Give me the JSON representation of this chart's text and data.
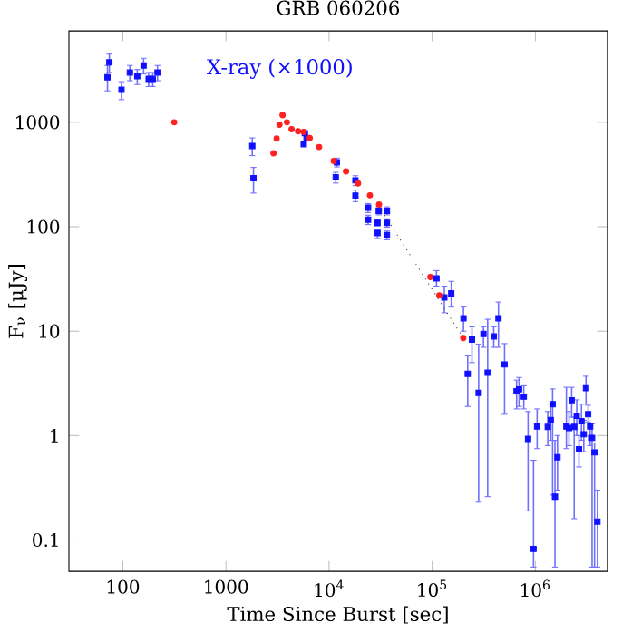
{
  "chart_data": {
    "type": "scatter",
    "title": "GRB 060206",
    "xlabel": "Time Since Burst [sec]",
    "ylabel": "F$_{ν}$ [μJy]",
    "log": "xy",
    "xlim": [
      30,
      5000000
    ],
    "ylim": [
      0.05,
      7500
    ],
    "xticks": [
      100,
      1000,
      {
        "value": 10000,
        "label": "10$^{4}$"
      },
      {
        "value": 100000,
        "label": "10$^{5}$"
      },
      {
        "value": 1000000,
        "label": "10$^{6}$"
      }
    ],
    "yticks": [
      0.1,
      1,
      10,
      100,
      1000
    ],
    "grid": false,
    "series": [
      {
        "name": "X-ray (×1000)",
        "type": "scatter",
        "color": "#1010ff",
        "marker": "square",
        "x": [
          71,
          74,
          97,
          117,
          138,
          159,
          178,
          195,
          217,
          1800,
          1850,
          5680,
          5820,
          6050,
          11900,
          11600,
          18000,
          18000,
          23900,
          23900,
          30300,
          29500,
          29500,
          36400,
          36400,
          36400,
          110000,
          131000,
          153000,
          201000,
          243000,
          221000,
          282000,
          314000,
          345000,
          395000,
          439000,
          503000,
          658000,
          695000,
          773000,
          850000,
          960000,
          1040000,
          1320000,
          1410000,
          1470000,
          1550000,
          1640000,
          2000000,
          2120000,
          2250000,
          2380000,
          2520000,
          2650000,
          2800000,
          2950000,
          3100000,
          3250000,
          3400000,
          3550000,
          3750000,
          4000000
        ],
        "values": [
          2700,
          3750,
          2050,
          3000,
          2760,
          3500,
          2600,
          2600,
          3000,
          594,
          292,
          618,
          787,
          706,
          414,
          297,
          278,
          199,
          152,
          117,
          142,
          109,
          87,
          142,
          109,
          83,
          32,
          21,
          23,
          13.3,
          8.3,
          3.9,
          2.56,
          9.4,
          4.0,
          8.9,
          13.3,
          4.8,
          2.66,
          2.77,
          2.36,
          0.93,
          0.082,
          1.22,
          1.21,
          1.41,
          2.0,
          0.26,
          0.62,
          1.22,
          1.18,
          2.18,
          1.21,
          1.55,
          0.74,
          1.37,
          1.03,
          2.84,
          1.6,
          1.22,
          0.95,
          0.69,
          0.15
        ],
        "errors": [
          [
            2000,
            3500
          ],
          [
            3000,
            4500
          ],
          [
            1650,
            2450
          ],
          [
            2500,
            3500
          ],
          [
            2300,
            3200
          ],
          [
            2900,
            4100
          ],
          [
            2200,
            3000
          ],
          [
            2200,
            3000
          ],
          [
            2500,
            3500
          ],
          [
            480,
            710
          ],
          [
            210,
            370
          ],
          null,
          null,
          null,
          40,
          35,
          30,
          25,
          [
            137,
            167
          ],
          [
            105,
            129
          ],
          [
            130,
            155
          ],
          [
            102,
            117
          ],
          [
            77,
            93
          ],
          [
            130,
            155
          ],
          [
            99,
            119
          ],
          [
            75,
            91
          ],
          [
            27,
            38
          ],
          [
            15,
            27
          ],
          [
            17,
            30
          ],
          [
            10,
            17
          ],
          [
            5,
            11
          ],
          [
            1.9,
            5.8
          ],
          [
            0.23,
            7.5
          ],
          [
            7,
            11
          ],
          [
            0.26,
            13
          ],
          [
            7,
            11
          ],
          [
            7,
            19
          ],
          [
            1.6,
            7.6
          ],
          [
            1.8,
            3.4
          ],
          [
            1.9,
            3.6
          ],
          [
            1.8,
            3.0
          ],
          [
            0.19,
            1.7
          ],
          [
            0.055,
            0.58
          ],
          [
            0.75,
            1.8
          ],
          [
            0.8,
            1.7
          ],
          [
            0.9,
            2.0
          ],
          [
            0.27,
            2.8
          ],
          [
            0.055,
            0.9
          ],
          [
            0.3,
            1.0
          ],
          [
            0.75,
            2.9
          ],
          [
            0.8,
            1.7
          ],
          [
            1.5,
            2.9
          ],
          [
            0.16,
            1.5
          ],
          [
            1.0,
            2.2
          ],
          [
            0.5,
            1.0
          ],
          [
            0.9,
            2.0
          ],
          [
            0.7,
            1.4
          ],
          [
            2.0,
            3.7
          ],
          [
            1.35,
            1.95
          ],
          [
            0.8,
            1.3
          ],
          [
            0.055,
            1.3
          ],
          [
            0.055,
            0.85
          ],
          [
            0.055,
            0.3
          ]
        ]
      },
      {
        "type": "scatter",
        "color": "#ff2020",
        "marker": "circle",
        "x": [
          315,
          2890,
          3100,
          3300,
          3540,
          3900,
          4330,
          5000,
          5680,
          6490,
          8000,
          11100,
          14600,
          19100,
          24900,
          30500,
          95900,
          117000,
          200000
        ],
        "values": [
          1000,
          506,
          700,
          950,
          1170,
          1000,
          860,
          820,
          810,
          706,
          580,
          426,
          339,
          260,
          200,
          163,
          33,
          22,
          8.6
        ]
      },
      {
        "type": "line",
        "color": "#333333",
        "line_style": "dotted",
        "marker": "none",
        "x": [
          30000,
          200000
        ],
        "values": [
          160,
          8.6
        ]
      }
    ]
  }
}
